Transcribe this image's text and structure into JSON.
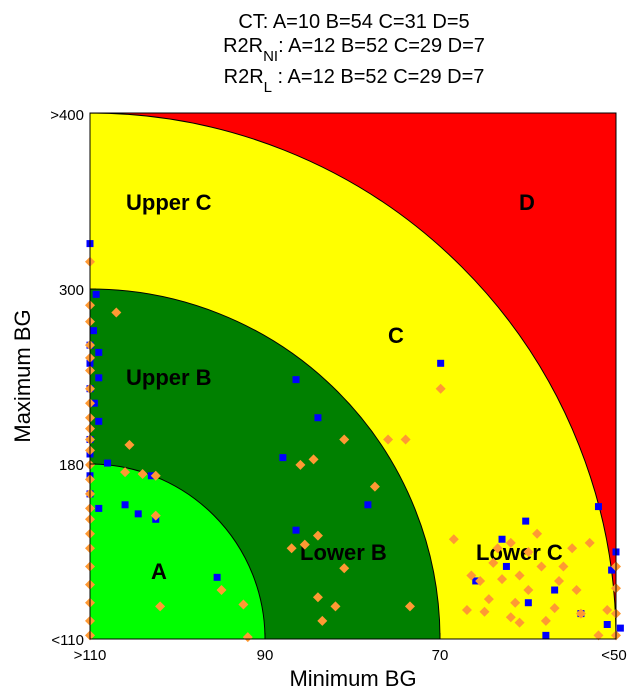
{
  "chart_data": {
    "type": "scatter",
    "title_lines": [
      {
        "main": "CT:  A=10 B=54 C=31 D=5",
        "prefix": "",
        "sub": "",
        "suffix": ""
      },
      {
        "main": "",
        "prefix": "R2R",
        "sub": "NI",
        "suffix": ":  A=12 B=52 C=29 D=7"
      },
      {
        "main": "",
        "prefix": "R2R",
        "sub": "L",
        "suffix": " :  A=12 B=52 C=29 D=7"
      }
    ],
    "xlabel": "Minimum BG",
    "ylabel": "Maximum BG",
    "x_ticks": [
      ">110",
      "90",
      "70",
      "<50"
    ],
    "y_ticks": [
      "<110",
      "180",
      "300",
      ">400"
    ],
    "xlim": [
      110,
      50
    ],
    "ylim": [
      110,
      400
    ],
    "zones": [
      {
        "name": "D",
        "color": "#ff0000"
      },
      {
        "name": "C",
        "color": "#ffff00"
      },
      {
        "name": "B",
        "color": "#008000"
      },
      {
        "name": "A",
        "color": "#00ff00"
      }
    ],
    "zone_labels": [
      "Upper C",
      "D",
      "C",
      "Upper B",
      "Lower B",
      "Lower C",
      "A"
    ],
    "marker_colors": {
      "square": "#0000ff",
      "diamond": "#ff9933"
    },
    "series": [
      {
        "marker": "square",
        "points": [
          [
            110,
            328
          ],
          [
            109.3,
            300
          ],
          [
            109.6,
            280
          ],
          [
            110,
            272
          ],
          [
            109,
            268
          ],
          [
            110,
            262
          ],
          [
            109,
            254
          ],
          [
            110,
            248
          ],
          [
            109.5,
            240
          ],
          [
            109,
            230
          ],
          [
            110,
            220
          ],
          [
            110,
            212
          ],
          [
            110,
            200
          ],
          [
            110,
            190
          ],
          [
            109,
            182
          ],
          [
            108,
            207
          ],
          [
            106,
            184
          ],
          [
            104.5,
            179
          ],
          [
            103,
            200
          ],
          [
            102.5,
            176
          ],
          [
            95.5,
            144
          ],
          [
            86.5,
            253
          ],
          [
            88,
            210
          ],
          [
            86.5,
            170
          ],
          [
            84,
            232
          ],
          [
            78.3,
            184
          ],
          [
            70,
            262
          ],
          [
            63,
            165
          ],
          [
            62.5,
            150
          ],
          [
            66,
            142
          ],
          [
            60.3,
            175
          ],
          [
            52,
            183
          ],
          [
            50,
            158
          ],
          [
            50.5,
            148
          ],
          [
            57,
            137
          ],
          [
            60,
            130
          ],
          [
            54,
            124
          ],
          [
            51,
            118
          ],
          [
            49.5,
            116
          ],
          [
            58,
            112
          ]
        ]
      },
      {
        "marker": "diamond",
        "points": [
          [
            110,
            318
          ],
          [
            110,
            294
          ],
          [
            110,
            285
          ],
          [
            110,
            272
          ],
          [
            110,
            265
          ],
          [
            110,
            258
          ],
          [
            110,
            248
          ],
          [
            110,
            240
          ],
          [
            110,
            232
          ],
          [
            110,
            226
          ],
          [
            110,
            220
          ],
          [
            110,
            214
          ],
          [
            110,
            206
          ],
          [
            110,
            198
          ],
          [
            110,
            190
          ],
          [
            110,
            182
          ],
          [
            110,
            176
          ],
          [
            110,
            168
          ],
          [
            110,
            160
          ],
          [
            110,
            150
          ],
          [
            110,
            140
          ],
          [
            110,
            130
          ],
          [
            110,
            120
          ],
          [
            110,
            112
          ],
          [
            107,
            290
          ],
          [
            105.5,
            217
          ],
          [
            106,
            202
          ],
          [
            104,
            201
          ],
          [
            102.5,
            200
          ],
          [
            102.5,
            178
          ],
          [
            102,
            128
          ],
          [
            95,
            137
          ],
          [
            92.5,
            129
          ],
          [
            92,
            111
          ],
          [
            86,
            206
          ],
          [
            87,
            160
          ],
          [
            84.5,
            209
          ],
          [
            84,
            167
          ],
          [
            85.5,
            162
          ],
          [
            84,
            133
          ],
          [
            83.5,
            120
          ],
          [
            81,
            220
          ],
          [
            81,
            149
          ],
          [
            82,
            128
          ],
          [
            77.5,
            194
          ],
          [
            76,
            220
          ],
          [
            74,
            220
          ],
          [
            73.5,
            128
          ],
          [
            70,
            248
          ],
          [
            68.5,
            165
          ],
          [
            66.5,
            145
          ],
          [
            65.5,
            142
          ],
          [
            64,
            152
          ],
          [
            63.5,
            160
          ],
          [
            64.5,
            132
          ],
          [
            62,
            163
          ],
          [
            61,
            145
          ],
          [
            61.5,
            130
          ],
          [
            59,
            168
          ],
          [
            58.5,
            150
          ],
          [
            58,
            120
          ],
          [
            56.5,
            142
          ],
          [
            56,
            150
          ],
          [
            54.5,
            137
          ],
          [
            54,
            124
          ],
          [
            52,
            112
          ],
          [
            51,
            126
          ],
          [
            50,
            150
          ],
          [
            50,
            138
          ],
          [
            50,
            124
          ],
          [
            50,
            112
          ],
          [
            61,
            119
          ],
          [
            57,
            127
          ],
          [
            60,
            137
          ],
          [
            63,
            143
          ],
          [
            65,
            125
          ],
          [
            67,
            126
          ],
          [
            62,
            122
          ],
          [
            60,
            158
          ],
          [
            55,
            160
          ],
          [
            53,
            163
          ]
        ]
      }
    ]
  }
}
